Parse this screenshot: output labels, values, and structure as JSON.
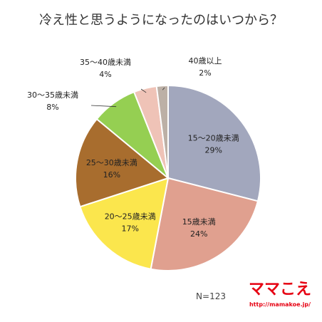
{
  "chart_data": {
    "type": "pie",
    "title": "冷え性と思うようになったのはいつから？",
    "categories": [
      "15～20歳未満",
      "15歳未満",
      "20～25歳未満",
      "25～30歳未満",
      "30～35歳未満",
      "35～40歳未満",
      "40歳以上"
    ],
    "values": [
      29,
      24,
      17,
      16,
      8,
      4,
      2
    ],
    "value_labels": [
      "29%",
      "24%",
      "17%",
      "16%",
      "8%",
      "4%",
      "2%"
    ],
    "colors": [
      "#a2a7bd",
      "#e0a08f",
      "#fbe64d",
      "#a86d2e",
      "#95cf52",
      "#efc3b7",
      "#bcb0a6"
    ],
    "start_angle_deg": 0,
    "direction": "clockwise",
    "legend": "none",
    "note": "N=123"
  },
  "logo": {
    "text": "ママこえ",
    "url": "http://mamakoe.jp/"
  }
}
